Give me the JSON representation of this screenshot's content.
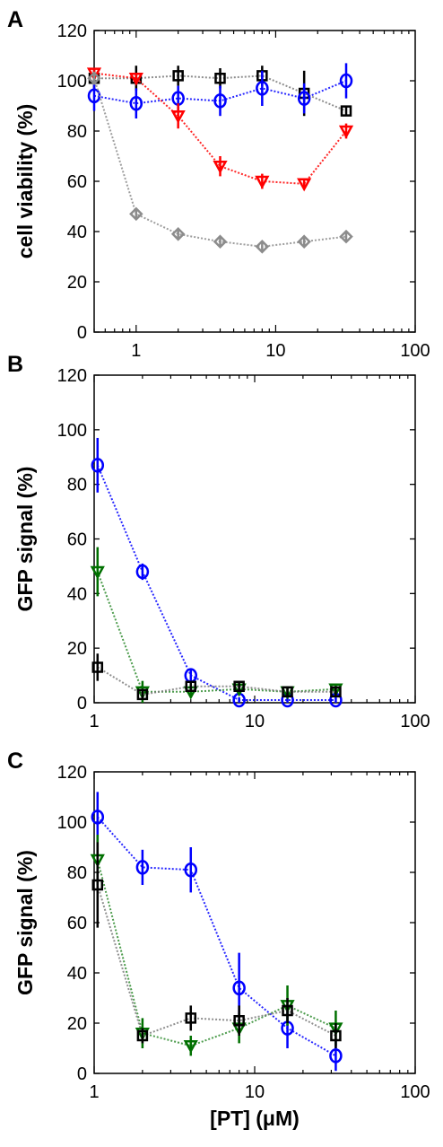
{
  "chart_data": [
    {
      "panel": "A",
      "type": "scatter",
      "xscale": "log",
      "xlim": [
        0.5,
        100
      ],
      "ylim": [
        0,
        120
      ],
      "xticks": [
        "1",
        "10",
        "100"
      ],
      "yticks": [
        "0",
        "20",
        "40",
        "60",
        "80",
        "100",
        "120"
      ],
      "xlabel": "",
      "ylabel": "cell viability (%)",
      "series": [
        {
          "marker": "square",
          "color": "#000000",
          "line_color": "#7a7a7a",
          "x": [
            0.5,
            1,
            2,
            4,
            8,
            16,
            32
          ],
          "y": [
            101,
            101,
            102,
            101,
            102,
            95,
            88
          ],
          "err": [
            4,
            5,
            4,
            4,
            4,
            9,
            2
          ]
        },
        {
          "marker": "circle",
          "color": "#0000ff",
          "line_color": "#0000ff",
          "x": [
            0.5,
            1,
            2,
            4,
            8,
            16,
            32
          ],
          "y": [
            94,
            91,
            93,
            92,
            97,
            93,
            100
          ],
          "err": [
            6,
            6,
            5,
            6,
            7,
            6,
            7
          ]
        },
        {
          "marker": "triangle-down",
          "color": "#ff0000",
          "line_color": "#ff0000",
          "x": [
            0.5,
            1,
            2,
            4,
            8,
            16,
            32
          ],
          "y": [
            103,
            101,
            86,
            66,
            60,
            59,
            80
          ],
          "err": [
            2,
            2,
            5,
            4,
            3,
            2,
            3
          ]
        },
        {
          "marker": "diamond",
          "color": "#8c8c8c",
          "line_color": "#8c8c8c",
          "x": [
            0.5,
            1,
            2,
            4,
            8,
            16,
            32
          ],
          "y": [
            101,
            47,
            39,
            36,
            34,
            36,
            38
          ],
          "err": [
            2,
            2,
            2,
            2,
            2,
            2,
            2
          ]
        }
      ]
    },
    {
      "panel": "B",
      "type": "scatter",
      "xscale": "log",
      "xlim": [
        1,
        100
      ],
      "ylim": [
        0,
        120
      ],
      "xticks": [
        "1",
        "10",
        "100"
      ],
      "yticks": [
        "0",
        "20",
        "40",
        "60",
        "80",
        "100",
        "120"
      ],
      "xlabel": "",
      "ylabel": "GFP signal (%)",
      "series": [
        {
          "marker": "circle",
          "color": "#0000ff",
          "line_color": "#0000ff",
          "x": [
            1.05,
            2,
            4,
            8,
            16,
            32
          ],
          "y": [
            87,
            48,
            10,
            1,
            1,
            1
          ],
          "err": [
            10,
            3,
            2,
            1,
            1,
            1
          ]
        },
        {
          "marker": "triangle-down",
          "color": "#007000",
          "line_color": "#2e8b2e",
          "x": [
            1.05,
            2,
            4,
            8,
            16,
            32
          ],
          "y": [
            48,
            4,
            4,
            5,
            4,
            5
          ],
          "err": [
            9,
            4,
            2,
            2,
            2,
            2
          ]
        },
        {
          "marker": "square",
          "color": "#000000",
          "line_color": "#7a7a7a",
          "x": [
            1.05,
            2,
            4,
            8,
            16,
            32
          ],
          "y": [
            13,
            3,
            6,
            6,
            4,
            4
          ],
          "err": [
            5,
            2,
            2,
            2,
            2,
            2
          ]
        }
      ]
    },
    {
      "panel": "C",
      "type": "scatter",
      "xscale": "log",
      "xlim": [
        1,
        100
      ],
      "ylim": [
        0,
        120
      ],
      "xticks": [
        "1",
        "10",
        "100"
      ],
      "yticks": [
        "0",
        "20",
        "40",
        "60",
        "80",
        "100",
        "120"
      ],
      "xlabel": "[PT] (μM)",
      "ylabel": "GFP signal (%)",
      "series": [
        {
          "marker": "circle",
          "color": "#0000ff",
          "line_color": "#0000ff",
          "x": [
            1.05,
            2,
            4,
            8,
            16,
            32
          ],
          "y": [
            102,
            82,
            81,
            34,
            18,
            7
          ],
          "err": [
            10,
            7,
            9,
            14,
            8,
            6
          ]
        },
        {
          "marker": "triangle-down",
          "color": "#007000",
          "line_color": "#2e8b2e",
          "x": [
            1.05,
            2,
            4,
            8,
            16,
            32
          ],
          "y": [
            85,
            16,
            11,
            18,
            27,
            18
          ],
          "err": [
            10,
            6,
            4,
            6,
            8,
            7
          ]
        },
        {
          "marker": "square",
          "color": "#000000",
          "line_color": "#7a7a7a",
          "x": [
            1.05,
            2,
            4,
            8,
            16,
            32
          ],
          "y": [
            75,
            15,
            22,
            21,
            25,
            15
          ],
          "err": [
            17,
            3,
            5,
            6,
            5,
            5
          ]
        }
      ]
    }
  ]
}
